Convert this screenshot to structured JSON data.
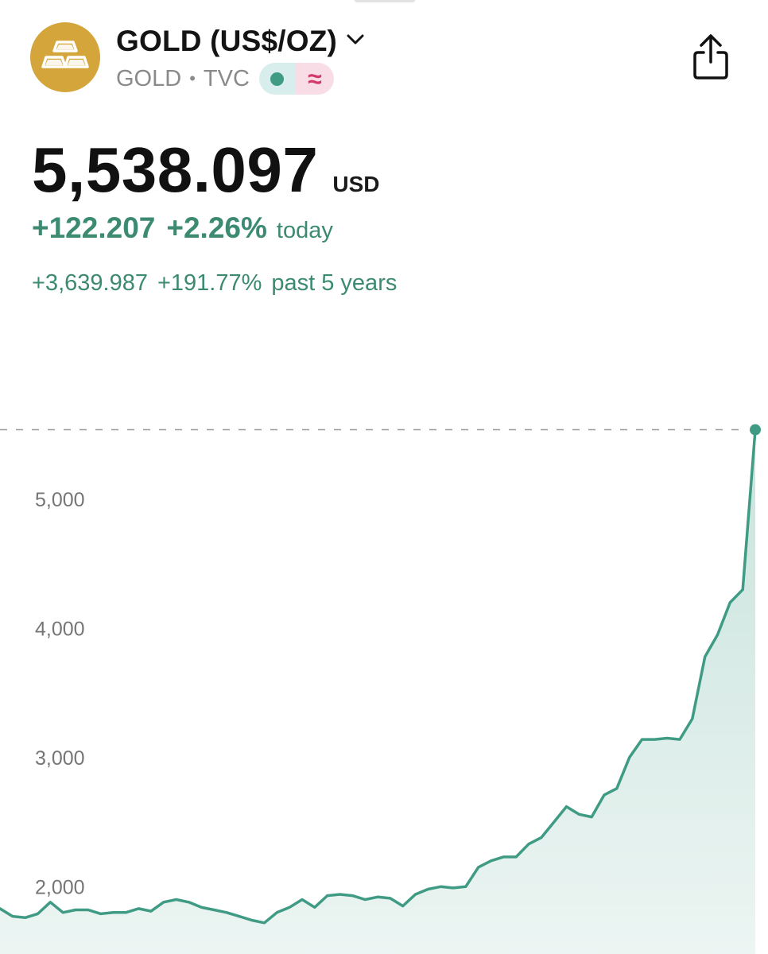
{
  "header": {
    "title": "GOLD (US$/OZ)",
    "symbol": "GOLD",
    "exchange": "TVC",
    "separator": "•",
    "delay_badge_glyph": "≈",
    "icons": [
      "gold-bars-icon",
      "chevron-down-icon",
      "live-status-icon",
      "delayed-data-icon",
      "share-icon"
    ]
  },
  "quote": {
    "price": "5,538.097",
    "currency": "USD",
    "change_today": "+122.207",
    "change_today_pct": "+2.26%",
    "today_label": "today",
    "change_period": "+3,639.987",
    "change_period_pct": "+191.77%",
    "period_label": "past 5 years"
  },
  "colors": {
    "accent_green": "#3c8a72",
    "line_green": "#3f9b84",
    "gold": "#d4a53a",
    "delay_pink": "#d23a6a"
  },
  "chart_data": {
    "type": "area",
    "title": "",
    "xlabel": "",
    "ylabel": "",
    "ylim": [
      1540,
      5640
    ],
    "yticks": [
      2000,
      3000,
      4000,
      5000
    ],
    "ytick_labels": [
      "2,000",
      "3,000",
      "4,000",
      "5,000"
    ],
    "grid": false,
    "reference_line": 5538.097,
    "series": [
      {
        "values": [
          1830,
          1770,
          1760,
          1790,
          1880,
          1800,
          1820,
          1820,
          1790,
          1800,
          1800,
          1830,
          1810,
          1880,
          1900,
          1880,
          1840,
          1820,
          1800,
          1770,
          1740,
          1720,
          1800,
          1840,
          1900,
          1840,
          1930,
          1940,
          1930,
          1900,
          1920,
          1910,
          1850,
          1940,
          1980,
          2000,
          1990,
          2000,
          2150,
          2200,
          2230,
          2230,
          2330,
          2380,
          2500,
          2620,
          2560,
          2540,
          2710,
          2760,
          3000,
          3140,
          3140,
          3150,
          3140,
          3300,
          3780,
          3950,
          4200,
          4300,
          5538.097
        ]
      }
    ]
  }
}
